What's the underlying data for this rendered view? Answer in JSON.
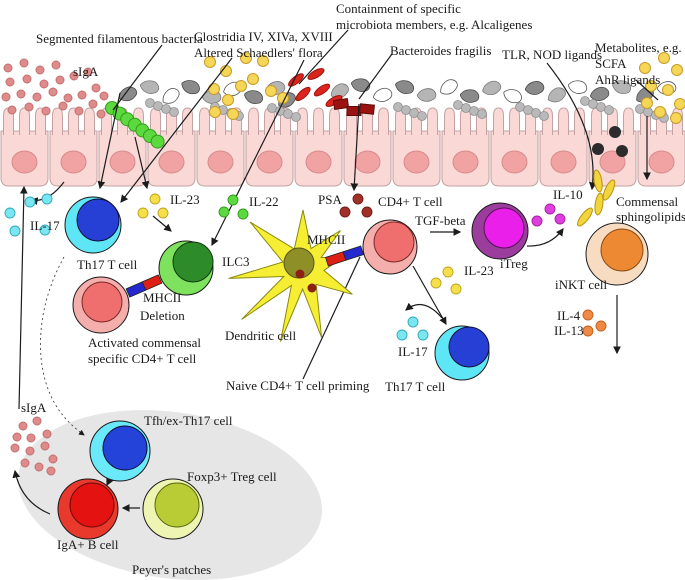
{
  "colors": {
    "arrow": "#1c1c1c",
    "epithelium_body": "#f9d8d6",
    "epithelium_stroke": "#c2a2a2",
    "epithelium_nucleus": "#f1a2a2",
    "epithelium_nucleus_stroke": "#d68c8c",
    "siga_dot": "#e08b8b",
    "siga_dot_stroke": "#c46f6f",
    "sfb_green": "#5cd93f",
    "sfb_green_stroke": "#2f9e1a",
    "clostridia_yellow": "#f6d656",
    "clostridia_yellow_stroke": "#c79b2b",
    "alcaligenes_red": "#da241c",
    "alcaligenes_red_stroke": "#99140e",
    "bacteroides_darkred": "#9b1310",
    "ligand_black": "#2b2b2b",
    "bacteria_gray_dark": "#8a8a8a",
    "bacteria_gray_light": "#b5b5b5",
    "bacteria_white": "#ffffff",
    "bacteria_stroke": "#555555",
    "chain_gray": "#b9b9b9",
    "chain_gray_stroke": "#8f8f8f",
    "il17_cyan": "#7ae6ef",
    "il17_cyan_stroke": "#2fa9bc",
    "il23_yellow": "#f6e049",
    "il23_yellow_stroke": "#bfa21e",
    "il22_green": "#5cd93f",
    "il22_green_stroke": "#2f9e1a",
    "il10_magenta": "#e03fe0",
    "il10_magenta_stroke": "#a020a0",
    "il4_orange": "#ee8a44",
    "il4_orange_stroke": "#c05f1d",
    "psa_maroon": "#a03028",
    "psa_maroon_stroke": "#6d1c16",
    "sphingolipid_yellow": "#f2d43c",
    "sphingolipid_stroke": "#b89210",
    "peyers_gray": "#e6e6e6",
    "mhc_blue": "#2328cf",
    "mhc_red": "#dd1f14",
    "deletion_red": "#e02020",
    "th17_outer": "#5fe6f6",
    "th17_inner": "#2640d6",
    "ilc3_outer": "#7ee25e",
    "ilc3_inner": "#2e8b2a",
    "cd4_outer": "#f4aeab",
    "cd4_inner": "#ee6f6e",
    "itreg_outer": "#9a3d9c",
    "itreg_inner": "#ea1fea",
    "inkt_outer": "#f8dcc2",
    "inkt_inner": "#ee8933",
    "tfh_outer": "#69e9f9",
    "tfh_inner": "#2443d9",
    "foxp3_outer": "#eef5b2",
    "foxp3_inner": "#b9cc36",
    "igab_outer": "#e8392c",
    "igab_inner": "#e41312",
    "dendritic_yellow": "#f6ee33",
    "dendritic_nucleus": "#8f8f28",
    "granule_maroon": "#8b2015"
  },
  "lumen": {
    "siga": "sIgA",
    "segmented_filamentous": "Segmented filamentous bacteria",
    "clostridia_line1": "Clostridia IV, XIVa, XVIII",
    "clostridia_line2": "Altered Schaedlers' flora",
    "containment_line1": "Containment of specific",
    "containment_line2": "microbiota members, e.g. Alcaligenes",
    "bacteroides": "Bacteroides fragilis",
    "tlr_nod": "TLR, NOD ligands",
    "metabolites_line1": "Metabolites, e.g.",
    "metabolites_line2": "SCFA",
    "metabolites_line3": "AhR ligands"
  },
  "lamina_propria": {
    "il17_left": "IL-17",
    "th17_left": "Th17 T cell",
    "il23_left": "IL-23",
    "il22": "IL-22",
    "ilc3": "ILC3",
    "mhcii_left": "MHCII",
    "deletion": "Deletion",
    "activated_line1": "Activated commensal",
    "activated_line2": "specific CD4+ T cell",
    "dendritic": "Dendritic cell",
    "naive_priming": "Naive CD4+ T cell priming",
    "psa": "PSA",
    "mhcii_center": "MHCII",
    "cd4": "CD4+ T cell",
    "tgf_beta": "TGF-beta",
    "il23_right": "IL-23",
    "il17_center": "IL-17",
    "th17_center": "Th17 T cell",
    "itreg": "iTreg",
    "il10": "IL-10",
    "commensal_line1": "Commensal",
    "commensal_line2": "sphingolipids",
    "inkt": "iNKT cell",
    "il4": "IL-4",
    "il13": "IL-13"
  },
  "peyers_patch": {
    "siga": "sIgA",
    "tfh": "Tfh/ex-Th17 cell",
    "foxp3": "Foxp3+ Treg cell",
    "igab": "IgA+ B cell",
    "caption": "Peyer's patches"
  }
}
